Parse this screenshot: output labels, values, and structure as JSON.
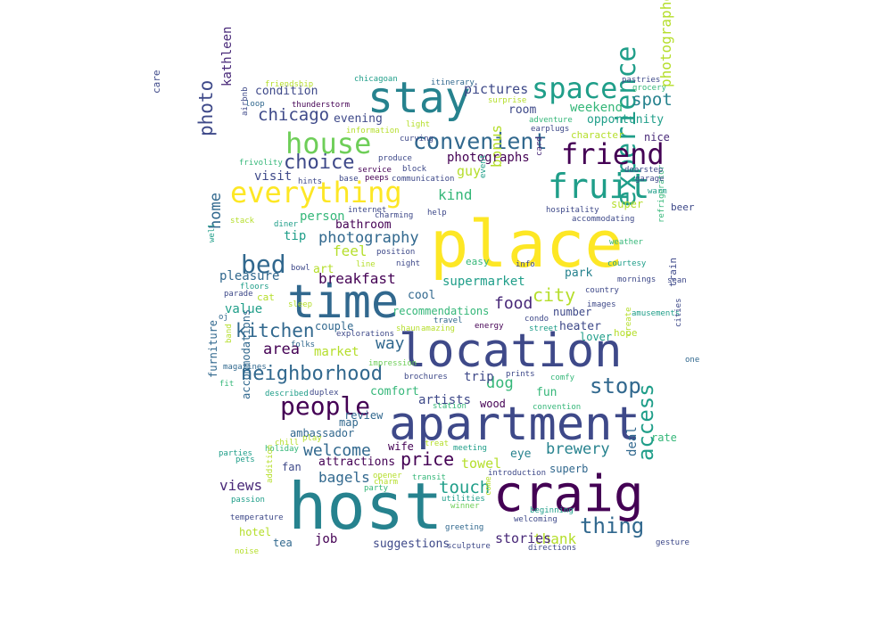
{
  "palette": {
    "yellow": "#fde725",
    "lime": "#b5de2b",
    "green": "#6ece58",
    "teal_green": "#35b779",
    "teal": "#1f9e89",
    "cyan_blue": "#26828e",
    "blue": "#31688e",
    "indigo": "#3e4989",
    "violet": "#482878",
    "purple": "#440154"
  },
  "words": [
    {
      "t": "place",
      "c": "#fde725"
    },
    {
      "t": "host",
      "c": "#26828e"
    },
    {
      "t": "apartment",
      "c": "#3e4989"
    },
    {
      "t": "location",
      "c": "#3e4989"
    },
    {
      "t": "craig",
      "c": "#440154"
    },
    {
      "t": "time",
      "c": "#31688e"
    },
    {
      "t": "experience",
      "c": "#1f9e89"
    },
    {
      "t": "stay",
      "c": "#26828e"
    },
    {
      "t": "everything",
      "c": "#fde725"
    },
    {
      "t": "fruit",
      "c": "#1f9e89"
    },
    {
      "t": "house",
      "c": "#6ece58"
    },
    {
      "t": "space",
      "c": "#1f9e89"
    },
    {
      "t": "friend",
      "c": "#440154"
    },
    {
      "t": "convenient",
      "c": "#31688e"
    },
    {
      "t": "people",
      "c": "#440154"
    },
    {
      "t": "neighborhood",
      "c": "#31688e"
    },
    {
      "t": "bed",
      "c": "#31688e"
    },
    {
      "t": "stop",
      "c": "#31688e"
    },
    {
      "t": "access",
      "c": "#1f9e89"
    },
    {
      "t": "thing",
      "c": "#31688e"
    },
    {
      "t": "kitchen",
      "c": "#31688e"
    },
    {
      "t": "choice",
      "c": "#3e4989"
    },
    {
      "t": "price",
      "c": "#440154"
    },
    {
      "t": "photography",
      "c": "#31688e"
    },
    {
      "t": "chicago",
      "c": "#3e4989"
    },
    {
      "t": "photo",
      "c": "#3e4989"
    },
    {
      "t": "photographer",
      "c": "#b5de2b"
    },
    {
      "t": "city",
      "c": "#b5de2b"
    },
    {
      "t": "touch",
      "c": "#1f9e89"
    },
    {
      "t": "spot",
      "c": "#26828e"
    },
    {
      "t": "welcome",
      "c": "#31688e"
    },
    {
      "t": "food",
      "c": "#482878"
    },
    {
      "t": "brewery",
      "c": "#26828e"
    },
    {
      "t": "breakfast",
      "c": "#440154"
    },
    {
      "t": "bonus",
      "c": "#b5de2b"
    },
    {
      "t": "home",
      "c": "#31688e"
    },
    {
      "t": "way",
      "c": "#31688e"
    },
    {
      "t": "views",
      "c": "#482878"
    },
    {
      "t": "area",
      "c": "#440154"
    },
    {
      "t": "bagels",
      "c": "#31688e"
    },
    {
      "t": "dog",
      "c": "#35b779"
    },
    {
      "t": "thank",
      "c": "#b5de2b"
    },
    {
      "t": "kind",
      "c": "#35b779"
    },
    {
      "t": "feel",
      "c": "#b5de2b"
    },
    {
      "t": "towel",
      "c": "#b5de2b"
    },
    {
      "t": "stories",
      "c": "#482878"
    },
    {
      "t": "pictures",
      "c": "#3e4989"
    },
    {
      "t": "supermarket",
      "c": "#1f9e89"
    },
    {
      "t": "weekend",
      "c": "#35b779"
    },
    {
      "t": "photographs",
      "c": "#440154"
    },
    {
      "t": "market",
      "c": "#b5de2b"
    },
    {
      "t": "kathleen",
      "c": "#482878"
    },
    {
      "t": "guy",
      "c": "#b5de2b"
    },
    {
      "t": "trip",
      "c": "#3e4989"
    },
    {
      "t": "visit",
      "c": "#3e4989"
    },
    {
      "t": "person",
      "c": "#35b779"
    },
    {
      "t": "pleasure",
      "c": "#31688e"
    },
    {
      "t": "tip",
      "c": "#1f9e89"
    },
    {
      "t": "deal",
      "c": "#31688e"
    },
    {
      "t": "value",
      "c": "#1f9e89"
    },
    {
      "t": "artists",
      "c": "#3e4989"
    },
    {
      "t": "job",
      "c": "#440154"
    },
    {
      "t": "evening",
      "c": "#3e4989"
    },
    {
      "t": "room",
      "c": "#3e4989"
    },
    {
      "t": "condition",
      "c": "#3e4989"
    },
    {
      "t": "opportunity",
      "c": "#1f9e89"
    },
    {
      "t": "attractions",
      "c": "#440154"
    },
    {
      "t": "suggestions",
      "c": "#3e4989"
    },
    {
      "t": "park",
      "c": "#26828e"
    },
    {
      "t": "cool",
      "c": "#31688e"
    },
    {
      "t": "comfort",
      "c": "#35b779"
    },
    {
      "t": "fun",
      "c": "#35b779"
    },
    {
      "t": "eye",
      "c": "#26828e"
    },
    {
      "t": "art",
      "c": "#b5de2b"
    },
    {
      "t": "bathroom",
      "c": "#440154"
    },
    {
      "t": "recommendations",
      "c": "#35b779"
    },
    {
      "t": "couple",
      "c": "#31688e"
    },
    {
      "t": "heater",
      "c": "#3e4989"
    },
    {
      "t": "number",
      "c": "#3e4989"
    },
    {
      "t": "lover",
      "c": "#1f9e89"
    },
    {
      "t": "rate",
      "c": "#35b779"
    },
    {
      "t": "nice",
      "c": "#482878"
    },
    {
      "t": "character",
      "c": "#b5de2b"
    },
    {
      "t": "review",
      "c": "#31688e"
    },
    {
      "t": "wife",
      "c": "#440154"
    },
    {
      "t": "tea",
      "c": "#31688e"
    },
    {
      "t": "hotel",
      "c": "#b5de2b"
    },
    {
      "t": "map",
      "c": "#31688e"
    },
    {
      "t": "fan",
      "c": "#3e4989"
    },
    {
      "t": "wood",
      "c": "#440154"
    },
    {
      "t": "superb",
      "c": "#31688e"
    },
    {
      "t": "furniture",
      "c": "#31688e"
    },
    {
      "t": "accommodations",
      "c": "#31688e"
    },
    {
      "t": "ambassador",
      "c": "#31688e"
    },
    {
      "t": "super",
      "c": "#b5de2b"
    },
    {
      "t": "beer",
      "c": "#3e4989"
    },
    {
      "t": "hope",
      "c": "#b5de2b"
    },
    {
      "t": "train",
      "c": "#3e4989"
    },
    {
      "t": "care",
      "c": "#3e4989"
    },
    {
      "t": "easy",
      "c": "#35b779"
    },
    {
      "t": "cat",
      "c": "#b5de2b"
    },
    {
      "t": "floors",
      "c": "#1f9e89"
    },
    {
      "t": "parade",
      "c": "#3e4989"
    },
    {
      "t": "prints",
      "c": "#3e4989"
    },
    {
      "t": "comfy",
      "c": "#35b779"
    },
    {
      "t": "convention",
      "c": "#35b779"
    },
    {
      "t": "brochures",
      "c": "#3e4989"
    },
    {
      "t": "station",
      "c": "#35b779"
    },
    {
      "t": "described",
      "c": "#1f9e89"
    },
    {
      "t": "duplex",
      "c": "#3e4989"
    },
    {
      "t": "magazines",
      "c": "#31688e"
    },
    {
      "t": "impression",
      "c": "#6ece58"
    },
    {
      "t": "explorations",
      "c": "#3e4989"
    },
    {
      "t": "shaun",
      "c": "#b5de2b"
    },
    {
      "t": "amazing",
      "c": "#b5de2b"
    },
    {
      "t": "energy",
      "c": "#440154"
    },
    {
      "t": "condo",
      "c": "#3e4989"
    },
    {
      "t": "street",
      "c": "#1f9e89"
    },
    {
      "t": "travel",
      "c": "#31688e"
    },
    {
      "t": "images",
      "c": "#3e4989"
    },
    {
      "t": "country",
      "c": "#3e4989"
    },
    {
      "t": "mornings",
      "c": "#3e4989"
    },
    {
      "t": "amusements",
      "c": "#1f9e89"
    },
    {
      "t": "courtesy",
      "c": "#1f9e89"
    },
    {
      "t": "weather",
      "c": "#35b779"
    },
    {
      "t": "refrigerator",
      "c": "#35b779"
    },
    {
      "t": "sean",
      "c": "#3e4989"
    },
    {
      "t": "cities",
      "c": "#3e4989"
    },
    {
      "t": "one",
      "c": "#31688e"
    },
    {
      "t": "create",
      "c": "#b5de2b"
    },
    {
      "t": "hospitality",
      "c": "#3e4989"
    },
    {
      "t": "accommodating",
      "c": "#3e4989"
    },
    {
      "t": "garage",
      "c": "#3e4989"
    },
    {
      "t": "warm",
      "c": "#1f9e89"
    },
    {
      "t": "doorstep",
      "c": "#3e4989"
    },
    {
      "t": "card",
      "c": "#482878"
    },
    {
      "t": "event",
      "c": "#1f9e89"
    },
    {
      "t": "help",
      "c": "#3e4989"
    },
    {
      "t": "charming",
      "c": "#3e4989"
    },
    {
      "t": "internet",
      "c": "#3e4989"
    },
    {
      "t": "stack",
      "c": "#b5de2b"
    },
    {
      "t": "diner",
      "c": "#1f9e89"
    },
    {
      "t": "bowl",
      "c": "#3e4989"
    },
    {
      "t": "well",
      "c": "#1f9e89"
    },
    {
      "t": "line",
      "c": "#b5de2b"
    },
    {
      "t": "night",
      "c": "#3e4989"
    },
    {
      "t": "position",
      "c": "#3e4989"
    },
    {
      "t": "info",
      "c": "#3e4989"
    },
    {
      "t": "sleep",
      "c": "#b5de2b"
    },
    {
      "t": "oj",
      "c": "#31688e"
    },
    {
      "t": "folks",
      "c": "#31688e"
    },
    {
      "t": "band",
      "c": "#b5de2b"
    },
    {
      "t": "fit",
      "c": "#35b779"
    },
    {
      "t": "chill",
      "c": "#b5de2b"
    },
    {
      "t": "play",
      "c": "#b5de2b"
    },
    {
      "t": "holiday",
      "c": "#35b779"
    },
    {
      "t": "pets",
      "c": "#1f9e89"
    },
    {
      "t": "parties",
      "c": "#1f9e89"
    },
    {
      "t": "treat",
      "c": "#b5de2b"
    },
    {
      "t": "meeting",
      "c": "#1f9e89"
    },
    {
      "t": "introduction",
      "c": "#3e4989"
    },
    {
      "t": "opener",
      "c": "#b5de2b"
    },
    {
      "t": "charm",
      "c": "#b5de2b"
    },
    {
      "t": "party",
      "c": "#35b779"
    },
    {
      "t": "transit",
      "c": "#35b779"
    },
    {
      "t": "passion",
      "c": "#1f9e89"
    },
    {
      "t": "addition",
      "c": "#b5de2b"
    },
    {
      "t": "temperature",
      "c": "#3e4989"
    },
    {
      "t": "noise",
      "c": "#b5de2b"
    },
    {
      "t": "utilities",
      "c": "#1f9e89"
    },
    {
      "t": "winner",
      "c": "#6ece58"
    },
    {
      "t": "come",
      "c": "#b5de2b"
    },
    {
      "t": "welcoming",
      "c": "#3e4989"
    },
    {
      "t": "beginning",
      "c": "#1f9e89"
    },
    {
      "t": "greeting",
      "c": "#31688e"
    },
    {
      "t": "sculpture",
      "c": "#3e4989"
    },
    {
      "t": "directions",
      "c": "#3e4989"
    },
    {
      "t": "gesture",
      "c": "#3e4989"
    },
    {
      "t": "friendship",
      "c": "#b5de2b"
    },
    {
      "t": "chicagoan",
      "c": "#1f9e89"
    },
    {
      "t": "itinerary",
      "c": "#31688e"
    },
    {
      "t": "pastries",
      "c": "#3e4989"
    },
    {
      "t": "grocery",
      "c": "#35b779"
    },
    {
      "t": "loop",
      "c": "#31688e"
    },
    {
      "t": "thunderstorm",
      "c": "#440154"
    },
    {
      "t": "surprise",
      "c": "#b5de2b"
    },
    {
      "t": "adventure",
      "c": "#35b779"
    },
    {
      "t": "airbnb",
      "c": "#3e4989"
    },
    {
      "t": "information",
      "c": "#b5de2b"
    },
    {
      "t": "earplugs",
      "c": "#3e4989"
    },
    {
      "t": "light",
      "c": "#b5de2b"
    },
    {
      "t": "curving",
      "c": "#3e4989"
    },
    {
      "t": "frivolity",
      "c": "#35b779"
    },
    {
      "t": "produce",
      "c": "#3e4989"
    },
    {
      "t": "service",
      "c": "#440154"
    },
    {
      "t": "block",
      "c": "#3e4989"
    },
    {
      "t": "hints",
      "c": "#3e4989"
    },
    {
      "t": "base",
      "c": "#3e4989"
    },
    {
      "t": "peeps",
      "c": "#440154"
    },
    {
      "t": "communication",
      "c": "#3e4989"
    }
  ]
}
